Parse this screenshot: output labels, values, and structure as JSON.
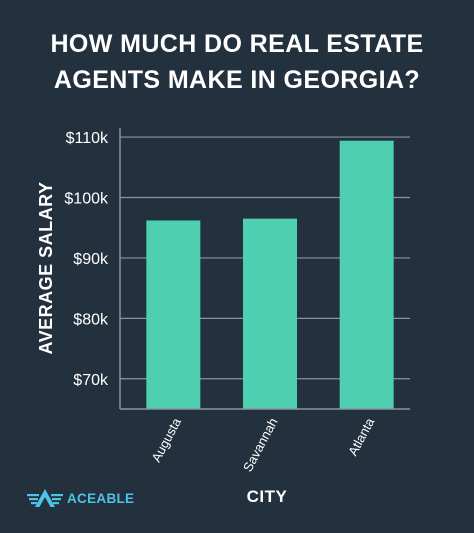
{
  "title": {
    "line1": "HOW MUCH DO REAL ESTATE",
    "line2": "AGENTS MAKE IN GEORGIA?"
  },
  "brand": {
    "name": "ACEABLE",
    "icon": "aceable-logo-icon",
    "color": "#4cc3e8"
  },
  "colors": {
    "background": "#23303d",
    "bar": "#4ecfaf",
    "grid": "#8a94a0",
    "text": "#ffffff"
  },
  "chart_data": {
    "type": "bar",
    "categories": [
      "Augusta",
      "Savannah",
      "Atlanta"
    ],
    "values": [
      96200,
      96500,
      109400
    ],
    "ylabel": "AVERAGE SALARY",
    "xlabel": "CITY",
    "ylim": [
      65000,
      111500
    ],
    "yticks": [
      70000,
      80000,
      90000,
      100000,
      110000
    ],
    "ytick_labels": [
      "$70k",
      "$80k",
      "$90k",
      "$100k",
      "$110k"
    ],
    "grid": true,
    "legend": "none"
  }
}
